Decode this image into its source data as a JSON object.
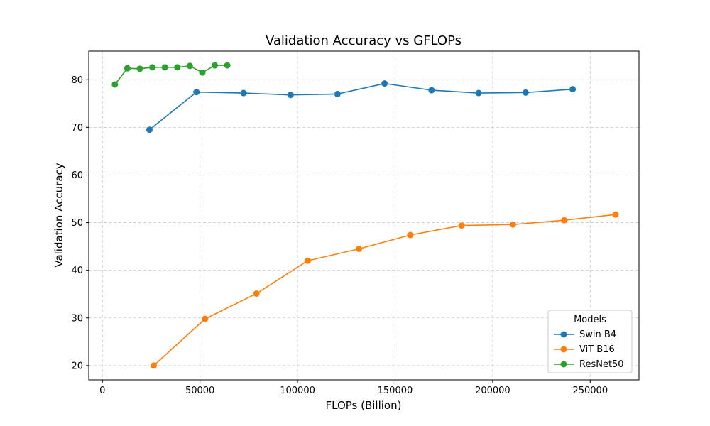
{
  "chart_data": {
    "type": "line",
    "title": "Validation Accuracy vs GFLOPs",
    "xlabel": "FLOPs (Billion)",
    "ylabel": "Validation Accuracy",
    "xlim": [
      -7000,
      275000
    ],
    "ylim": [
      17,
      86
    ],
    "xticks": [
      0,
      50000,
      100000,
      150000,
      200000,
      250000
    ],
    "xtick_labels": [
      "0",
      "50000",
      "100000",
      "150000",
      "200000",
      "250000"
    ],
    "yticks": [
      20,
      30,
      40,
      50,
      60,
      70,
      80
    ],
    "ytick_labels": [
      "20",
      "30",
      "40",
      "50",
      "60",
      "70",
      "80"
    ],
    "grid": true,
    "legend": {
      "title": "Models",
      "placement": "lower-right"
    },
    "series": [
      {
        "name": "Swin B4",
        "color": "#1f77b4",
        "x": [
          24100,
          48200,
          72300,
          96400,
          120500,
          144600,
          168700,
          192800,
          216900,
          241000
        ],
        "y": [
          69.5,
          77.4,
          77.2,
          76.8,
          77.0,
          79.2,
          77.8,
          77.2,
          77.3,
          78.0
        ]
      },
      {
        "name": "ViT B16",
        "color": "#ff7f0e",
        "x": [
          26300,
          52600,
          78900,
          105200,
          131500,
          157800,
          184100,
          210400,
          236700,
          263000
        ],
        "y": [
          20.0,
          29.8,
          35.1,
          42.0,
          44.5,
          47.4,
          49.4,
          49.6,
          50.5,
          51.7
        ]
      },
      {
        "name": "ResNet50",
        "color": "#2ca02c",
        "x": [
          6400,
          12800,
          19200,
          25600,
          32000,
          38400,
          44800,
          51200,
          57600,
          64000
        ],
        "y": [
          79.0,
          82.4,
          82.3,
          82.6,
          82.6,
          82.6,
          82.9,
          81.5,
          83.0,
          83.0
        ]
      }
    ]
  }
}
